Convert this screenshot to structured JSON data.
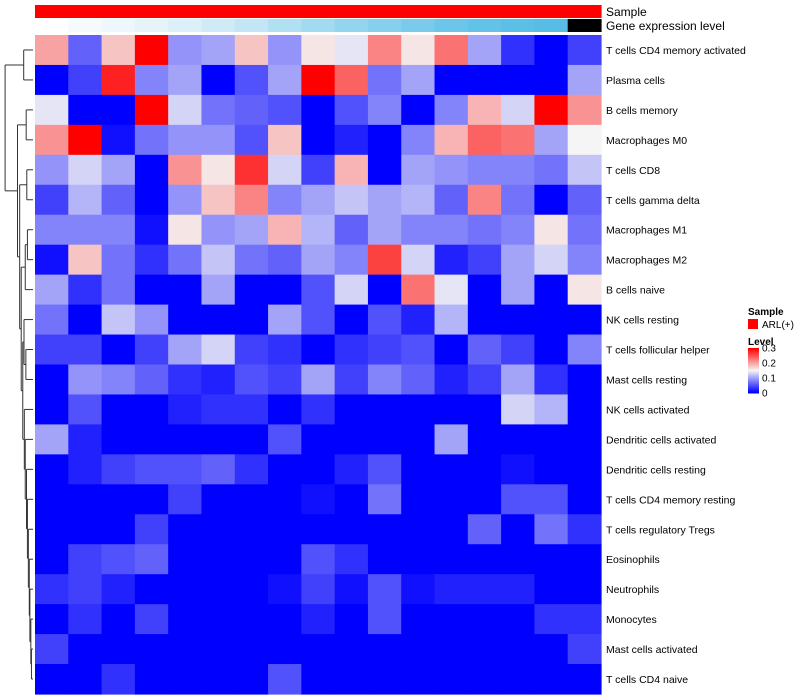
{
  "chart_data": {
    "type": "heatmap",
    "title": "",
    "annotations": [
      {
        "name": "Sample",
        "color": "#ff0000"
      },
      {
        "name": "Gene expression level",
        "colors": [
          "#ffffff",
          "#f5fbfd",
          "#eef7fb",
          "#e6f4fa",
          "#dbf0f9",
          "#cfebf7",
          "#c2e6f5",
          "#b2e0f3",
          "#a2daf1",
          "#93d4ef",
          "#86cfed",
          "#7acbeb",
          "#6dc6e9",
          "#63c2e8",
          "#5bbfe7",
          "#57bde6"
        ]
      },
      {
        "name": "",
        "color": "#ffffff"
      }
    ],
    "rows": [
      "T cells CD4 memory activated",
      "Plasma cells",
      "B cells memory",
      "Macrophages M0",
      "T cells CD8",
      "T cells gamma delta",
      "Macrophages M1",
      "Macrophages M2",
      "B cells naive",
      "NK cells resting",
      "T cells follicular helper",
      "Mast cells resting",
      "NK cells activated",
      "Dendritic cells activated",
      "Dendritic cells resting",
      "T cells CD4 memory resting",
      "T cells regulatory  Tregs",
      "Eosinophils",
      "Neutrophils",
      "Monocytes",
      "Mast cells activated",
      "T cells CD4 naive"
    ],
    "values": [
      [
        0.2,
        0.06,
        0.18,
        0.3,
        0.09,
        0.1,
        0.18,
        0.09,
        0.16,
        0.14,
        0.22,
        0.16,
        0.23,
        0.1,
        0.03,
        0.0,
        0.04
      ],
      [
        0.0,
        0.04,
        0.28,
        0.08,
        0.1,
        0.0,
        0.05,
        0.1,
        0.3,
        0.24,
        0.07,
        0.1,
        0.0,
        0.0,
        0.0,
        0.0,
        0.1
      ],
      [
        0.14,
        0.0,
        0.0,
        0.3,
        0.13,
        0.07,
        0.06,
        0.05,
        0.0,
        0.05,
        0.08,
        0.0,
        0.08,
        0.19,
        0.13,
        0.3,
        0.21
      ],
      [
        0.21,
        0.3,
        0.01,
        0.07,
        0.09,
        0.09,
        0.05,
        0.18,
        0.0,
        0.02,
        0.0,
        0.08,
        0.19,
        0.24,
        0.23,
        0.1,
        0.15
      ],
      [
        0.09,
        0.13,
        0.1,
        0.0,
        0.21,
        0.16,
        0.27,
        0.13,
        0.04,
        0.19,
        0.0,
        0.1,
        0.09,
        0.08,
        0.08,
        0.07,
        0.12
      ],
      [
        0.04,
        0.11,
        0.06,
        0.0,
        0.09,
        0.18,
        0.22,
        0.08,
        0.1,
        0.12,
        0.1,
        0.11,
        0.06,
        0.22,
        0.07,
        0.0,
        0.06
      ],
      [
        0.08,
        0.08,
        0.08,
        0.01,
        0.16,
        0.09,
        0.1,
        0.19,
        0.11,
        0.06,
        0.1,
        0.08,
        0.08,
        0.07,
        0.08,
        0.16,
        0.07
      ],
      [
        0.01,
        0.18,
        0.07,
        0.03,
        0.07,
        0.12,
        0.07,
        0.06,
        0.1,
        0.08,
        0.26,
        0.13,
        0.02,
        0.04,
        0.1,
        0.13,
        0.08
      ],
      [
        0.1,
        0.03,
        0.07,
        0.0,
        0.0,
        0.1,
        0.0,
        0.0,
        0.05,
        0.13,
        0.0,
        0.23,
        0.14,
        0.0,
        0.1,
        0.0,
        0.16
      ],
      [
        0.07,
        0.0,
        0.12,
        0.09,
        0.0,
        0.0,
        0.0,
        0.1,
        0.05,
        0.0,
        0.05,
        0.02,
        0.11,
        0.0,
        0.0,
        0.0,
        0.0
      ],
      [
        0.04,
        0.04,
        0.0,
        0.04,
        0.1,
        0.13,
        0.04,
        0.03,
        0.0,
        0.03,
        0.04,
        0.05,
        0.0,
        0.06,
        0.04,
        0.0,
        0.08
      ],
      [
        0.0,
        0.09,
        0.08,
        0.06,
        0.03,
        0.02,
        0.05,
        0.04,
        0.1,
        0.04,
        0.08,
        0.06,
        0.02,
        0.04,
        0.1,
        0.03,
        0.0
      ],
      [
        0.0,
        0.05,
        0.0,
        0.0,
        0.02,
        0.03,
        0.03,
        0.0,
        0.03,
        0.0,
        0.0,
        0.0,
        0.0,
        0.0,
        0.13,
        0.11,
        0.0
      ],
      [
        0.1,
        0.02,
        0.0,
        0.0,
        0.0,
        0.0,
        0.0,
        0.05,
        0.0,
        0.0,
        0.0,
        0.0,
        0.1,
        0.0,
        0.0,
        0.0,
        0.0
      ],
      [
        0.0,
        0.02,
        0.04,
        0.05,
        0.05,
        0.06,
        0.03,
        0.0,
        0.0,
        0.02,
        0.05,
        0.0,
        0.0,
        0.0,
        0.01,
        0.0,
        0.0
      ],
      [
        0.0,
        0.0,
        0.0,
        0.0,
        0.04,
        0.0,
        0.0,
        0.0,
        0.01,
        0.0,
        0.07,
        0.0,
        0.0,
        0.0,
        0.05,
        0.05,
        0.0
      ],
      [
        0.0,
        0.0,
        0.0,
        0.04,
        0.0,
        0.0,
        0.0,
        0.0,
        0.0,
        0.0,
        0.0,
        0.0,
        0.0,
        0.06,
        0.0,
        0.07,
        0.03
      ],
      [
        0.0,
        0.04,
        0.05,
        0.06,
        0.0,
        0.0,
        0.0,
        0.0,
        0.05,
        0.03,
        0.0,
        0.0,
        0.0,
        0.0,
        0.0,
        0.0,
        0.0
      ],
      [
        0.03,
        0.04,
        0.02,
        0.0,
        0.0,
        0.0,
        0.0,
        0.01,
        0.04,
        0.01,
        0.05,
        0.01,
        0.02,
        0.02,
        0.02,
        0.0,
        0.0
      ],
      [
        0.0,
        0.03,
        0.0,
        0.04,
        0.0,
        0.0,
        0.0,
        0.0,
        0.02,
        0.0,
        0.05,
        0.0,
        0.0,
        0.0,
        0.0,
        0.03,
        0.03
      ],
      [
        0.04,
        0.0,
        0.0,
        0.0,
        0.0,
        0.0,
        0.0,
        0.0,
        0.0,
        0.0,
        0.0,
        0.0,
        0.0,
        0.0,
        0.0,
        0.0,
        0.04
      ],
      [
        0.0,
        0.0,
        0.03,
        0.0,
        0.0,
        0.0,
        0.0,
        0.05,
        0.0,
        0.0,
        0.0,
        0.0,
        0.0,
        0.0,
        0.0,
        0.0,
        0.0
      ]
    ],
    "color_scale": {
      "min": 0,
      "mid": 0.15,
      "max": 0.3,
      "low_color": "#0000ff",
      "mid_color": "#f5f5f5",
      "high_color": "#ff0000"
    },
    "legend": {
      "position": "right",
      "sample_title": "Sample",
      "sample_entry": "ARL(+)",
      "sample_color": "#ff0000",
      "level_title": "Level",
      "ticks": [
        0,
        0.1,
        0.2,
        0.3
      ],
      "tick_labels": [
        "0",
        "0.1",
        "0.2",
        "0.3"
      ]
    },
    "dendrogram": {
      "side": "left"
    }
  }
}
